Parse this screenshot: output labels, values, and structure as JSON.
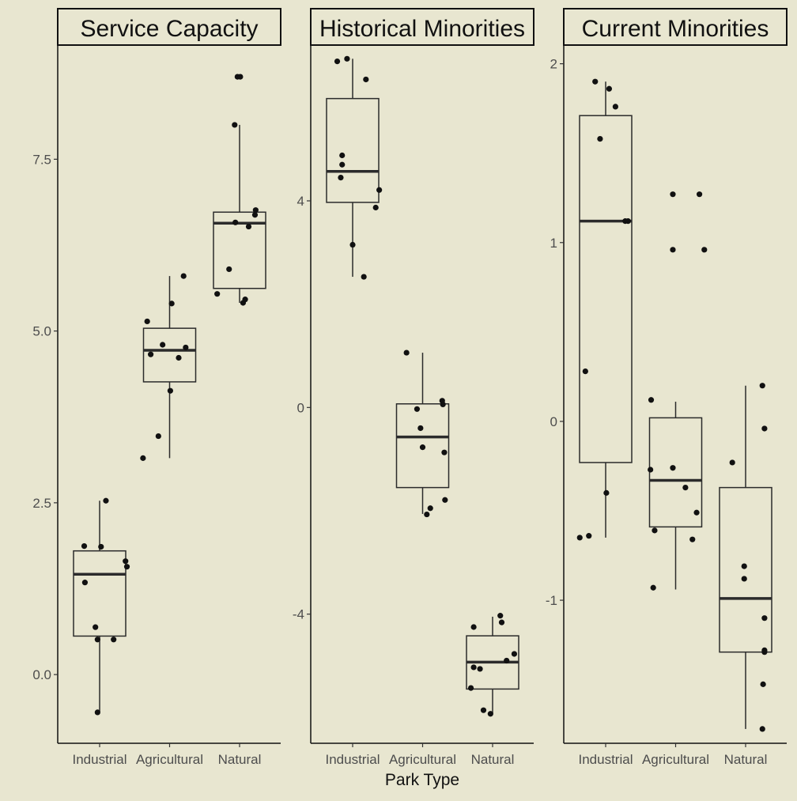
{
  "chart_data": {
    "type": "box",
    "xlabel": "Park Type",
    "categories": [
      "Industrial",
      "Agricultural",
      "Natural"
    ],
    "colors": {
      "background": "#e8e6d0",
      "box_line": "#2b2b2b",
      "point": "#111111"
    },
    "facets": [
      {
        "title": "Service Capacity",
        "ylim": [
          -1.0,
          9.15
        ],
        "yticks": [
          0.0,
          2.5,
          5.0,
          7.5
        ],
        "ytick_labels": [
          "0.0",
          "2.5",
          "5.0",
          "7.5"
        ],
        "boxes": [
          {
            "category": "Industrial",
            "q1": 0.56,
            "median": 1.46,
            "q3": 1.8,
            "whisker_low": -0.55,
            "whisker_high": 2.53
          },
          {
            "category": "Agricultural",
            "q1": 4.26,
            "median": 4.72,
            "q3": 5.04,
            "whisker_low": 3.15,
            "whisker_high": 5.8
          },
          {
            "category": "Natural",
            "q1": 5.62,
            "median": 6.57,
            "q3": 6.73,
            "whisker_low": 5.41,
            "whisker_high": 8.0
          }
        ],
        "points": [
          {
            "category": "Industrial",
            "offset": -0.22,
            "y": 1.87
          },
          {
            "category": "Industrial",
            "offset": -0.21,
            "y": 1.34
          },
          {
            "category": "Industrial",
            "offset": -0.06,
            "y": 0.69
          },
          {
            "category": "Industrial",
            "offset": -0.03,
            "y": 0.51
          },
          {
            "category": "Industrial",
            "offset": 0.02,
            "y": 1.86
          },
          {
            "category": "Industrial",
            "offset": 0.09,
            "y": 2.53
          },
          {
            "category": "Industrial",
            "offset": 0.2,
            "y": 0.51
          },
          {
            "category": "Industrial",
            "offset": 0.37,
            "y": 1.65
          },
          {
            "category": "Industrial",
            "offset": 0.39,
            "y": 1.57
          },
          {
            "category": "Industrial",
            "offset": -0.03,
            "y": -0.55
          },
          {
            "category": "Agricultural",
            "offset": -0.38,
            "y": 3.15
          },
          {
            "category": "Agricultural",
            "offset": -0.32,
            "y": 5.14
          },
          {
            "category": "Agricultural",
            "offset": -0.27,
            "y": 4.66
          },
          {
            "category": "Agricultural",
            "offset": -0.16,
            "y": 3.47
          },
          {
            "category": "Agricultural",
            "offset": -0.1,
            "y": 4.8
          },
          {
            "category": "Agricultural",
            "offset": 0.01,
            "y": 4.13
          },
          {
            "category": "Agricultural",
            "offset": 0.03,
            "y": 5.4
          },
          {
            "category": "Agricultural",
            "offset": 0.13,
            "y": 4.61
          },
          {
            "category": "Agricultural",
            "offset": 0.2,
            "y": 5.8
          },
          {
            "category": "Agricultural",
            "offset": 0.23,
            "y": 4.76
          },
          {
            "category": "Natural",
            "offset": -0.32,
            "y": 5.54
          },
          {
            "category": "Natural",
            "offset": -0.15,
            "y": 5.9
          },
          {
            "category": "Natural",
            "offset": -0.07,
            "y": 8.0
          },
          {
            "category": "Natural",
            "offset": -0.06,
            "y": 6.58
          },
          {
            "category": "Natural",
            "offset": -0.03,
            "y": 8.7
          },
          {
            "category": "Natural",
            "offset": 0.01,
            "y": 8.7
          },
          {
            "category": "Natural",
            "offset": 0.05,
            "y": 5.41
          },
          {
            "category": "Natural",
            "offset": 0.08,
            "y": 5.46
          },
          {
            "category": "Natural",
            "offset": 0.13,
            "y": 6.52
          },
          {
            "category": "Natural",
            "offset": 0.22,
            "y": 6.69
          },
          {
            "category": "Natural",
            "offset": 0.23,
            "y": 6.76
          }
        ]
      },
      {
        "title": "Historical Minorities",
        "ylim": [
          -6.5,
          7.0
        ],
        "yticks": [
          -4,
          0,
          4
        ],
        "ytick_labels": [
          "-4",
          "0",
          "4"
        ],
        "boxes": [
          {
            "category": "Industrial",
            "q1": 3.97,
            "median": 4.57,
            "q3": 5.98,
            "whisker_low": 2.53,
            "whisker_high": 6.75
          },
          {
            "category": "Agricultural",
            "q1": -1.55,
            "median": -0.57,
            "q3": 0.07,
            "whisker_low": -2.06,
            "whisker_high": 1.06
          },
          {
            "category": "Natural",
            "q1": -5.45,
            "median": -4.93,
            "q3": -4.42,
            "whisker_low": -5.92,
            "whisker_high": -4.05
          }
        ],
        "points": [
          {
            "category": "Industrial",
            "offset": -0.22,
            "y": 6.7
          },
          {
            "category": "Industrial",
            "offset": -0.08,
            "y": 6.75
          },
          {
            "category": "Industrial",
            "offset": -0.15,
            "y": 4.88
          },
          {
            "category": "Industrial",
            "offset": -0.15,
            "y": 4.7
          },
          {
            "category": "Industrial",
            "offset": -0.17,
            "y": 4.45
          },
          {
            "category": "Industrial",
            "offset": 0.0,
            "y": 3.15
          },
          {
            "category": "Industrial",
            "offset": 0.16,
            "y": 2.53
          },
          {
            "category": "Industrial",
            "offset": 0.19,
            "y": 6.35
          },
          {
            "category": "Industrial",
            "offset": 0.33,
            "y": 3.87
          },
          {
            "category": "Industrial",
            "offset": 0.38,
            "y": 4.21
          },
          {
            "category": "Agricultural",
            "offset": -0.23,
            "y": 1.06
          },
          {
            "category": "Agricultural",
            "offset": -0.08,
            "y": -0.03
          },
          {
            "category": "Agricultural",
            "offset": -0.03,
            "y": -0.4
          },
          {
            "category": "Agricultural",
            "offset": 0.0,
            "y": -0.77
          },
          {
            "category": "Agricultural",
            "offset": 0.06,
            "y": -2.07
          },
          {
            "category": "Agricultural",
            "offset": 0.11,
            "y": -1.95
          },
          {
            "category": "Agricultural",
            "offset": 0.28,
            "y": 0.13
          },
          {
            "category": "Agricultural",
            "offset": 0.29,
            "y": 0.06
          },
          {
            "category": "Agricultural",
            "offset": 0.31,
            "y": -0.87
          },
          {
            "category": "Agricultural",
            "offset": 0.32,
            "y": -1.79
          },
          {
            "category": "Natural",
            "offset": -0.31,
            "y": -5.43
          },
          {
            "category": "Natural",
            "offset": -0.27,
            "y": -5.03
          },
          {
            "category": "Natural",
            "offset": -0.27,
            "y": -4.25
          },
          {
            "category": "Natural",
            "offset": -0.18,
            "y": -5.06
          },
          {
            "category": "Natural",
            "offset": -0.13,
            "y": -5.86
          },
          {
            "category": "Natural",
            "offset": -0.03,
            "y": -5.93
          },
          {
            "category": "Natural",
            "offset": 0.11,
            "y": -4.03
          },
          {
            "category": "Natural",
            "offset": 0.13,
            "y": -4.16
          },
          {
            "category": "Natural",
            "offset": 0.2,
            "y": -4.9
          },
          {
            "category": "Natural",
            "offset": 0.31,
            "y": -4.77
          }
        ]
      },
      {
        "title": "Current Minorities",
        "ylim": [
          -1.8,
          2.1
        ],
        "yticks": [
          -1,
          0,
          1,
          2
        ],
        "ytick_labels": [
          "-1",
          "0",
          "1",
          "2"
        ],
        "boxes": [
          {
            "category": "Industrial",
            "q1": -0.23,
            "median": 1.12,
            "q3": 1.71,
            "whisker_low": -0.65,
            "whisker_high": 1.9
          },
          {
            "category": "Agricultural",
            "q1": -0.59,
            "median": -0.33,
            "q3": 0.02,
            "whisker_low": -0.94,
            "whisker_high": 0.11
          },
          {
            "category": "Natural",
            "q1": -1.29,
            "median": -0.99,
            "q3": -0.37,
            "whisker_low": -1.72,
            "whisker_high": 0.2
          }
        ],
        "points": [
          {
            "category": "Industrial",
            "offset": -0.37,
            "y": -0.65
          },
          {
            "category": "Industrial",
            "offset": -0.29,
            "y": 0.28
          },
          {
            "category": "Industrial",
            "offset": -0.24,
            "y": -0.64
          },
          {
            "category": "Industrial",
            "offset": -0.15,
            "y": 1.9
          },
          {
            "category": "Industrial",
            "offset": -0.08,
            "y": 1.58
          },
          {
            "category": "Industrial",
            "offset": 0.01,
            "y": -0.4
          },
          {
            "category": "Industrial",
            "offset": 0.05,
            "y": 1.86
          },
          {
            "category": "Industrial",
            "offset": 0.14,
            "y": 1.76
          },
          {
            "category": "Industrial",
            "offset": 0.28,
            "y": 1.12
          },
          {
            "category": "Industrial",
            "offset": 0.32,
            "y": 1.12
          },
          {
            "category": "Agricultural",
            "offset": -0.35,
            "y": 0.12
          },
          {
            "category": "Agricultural",
            "offset": -0.36,
            "y": -0.27
          },
          {
            "category": "Agricultural",
            "offset": -0.3,
            "y": -0.61
          },
          {
            "category": "Agricultural",
            "offset": -0.32,
            "y": -0.93
          },
          {
            "category": "Agricultural",
            "offset": -0.04,
            "y": 1.27
          },
          {
            "category": "Agricultural",
            "offset": -0.04,
            "y": 0.96
          },
          {
            "category": "Agricultural",
            "offset": -0.04,
            "y": -0.26
          },
          {
            "category": "Agricultural",
            "offset": 0.14,
            "y": -0.37
          },
          {
            "category": "Agricultural",
            "offset": 0.24,
            "y": -0.66
          },
          {
            "category": "Agricultural",
            "offset": 0.3,
            "y": -0.51
          },
          {
            "category": "Agricultural",
            "offset": 0.34,
            "y": 1.27
          },
          {
            "category": "Agricultural",
            "offset": 0.41,
            "y": 0.96
          },
          {
            "category": "Natural",
            "offset": -0.19,
            "y": -0.23
          },
          {
            "category": "Natural",
            "offset": -0.02,
            "y": -0.81
          },
          {
            "category": "Natural",
            "offset": -0.02,
            "y": -0.88
          },
          {
            "category": "Natural",
            "offset": 0.24,
            "y": 0.2
          },
          {
            "category": "Natural",
            "offset": 0.27,
            "y": -0.04
          },
          {
            "category": "Natural",
            "offset": 0.27,
            "y": -1.1
          },
          {
            "category": "Natural",
            "offset": 0.27,
            "y": -1.28
          },
          {
            "category": "Natural",
            "offset": 0.27,
            "y": -1.29
          },
          {
            "category": "Natural",
            "offset": 0.25,
            "y": -1.47
          },
          {
            "category": "Natural",
            "offset": 0.24,
            "y": -1.72
          }
        ]
      }
    ]
  }
}
